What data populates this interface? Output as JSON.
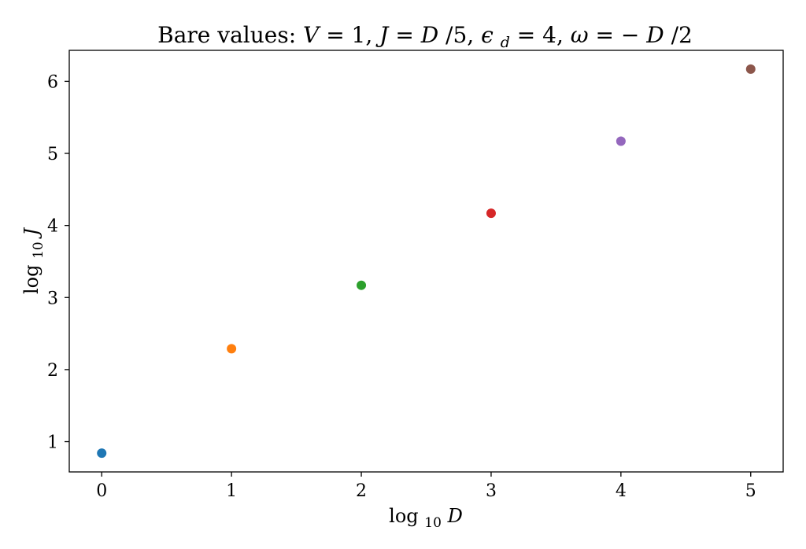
{
  "chart_data": {
    "type": "scatter",
    "title": "Bare values: V = 1, J = D/5, ϵ_d = 4, ω = −D/2",
    "xlabel": "log10 D",
    "ylabel": "log10 J",
    "xlim": [
      -0.25,
      5.25
    ],
    "ylim": [
      0.58,
      6.43
    ],
    "xticks": [
      0,
      1,
      2,
      3,
      4,
      5
    ],
    "yticks": [
      1,
      2,
      3,
      4,
      5,
      6
    ],
    "grid": false,
    "legend": "none",
    "points": [
      {
        "x": 0,
        "y": 0.84,
        "color": "#1f77b4"
      },
      {
        "x": 1,
        "y": 2.29,
        "color": "#ff7f0e"
      },
      {
        "x": 2,
        "y": 3.17,
        "color": "#2ca02c"
      },
      {
        "x": 3,
        "y": 4.17,
        "color": "#d62728"
      },
      {
        "x": 4,
        "y": 5.17,
        "color": "#9467bd"
      },
      {
        "x": 5,
        "y": 6.17,
        "color": "#8c564b"
      }
    ]
  }
}
